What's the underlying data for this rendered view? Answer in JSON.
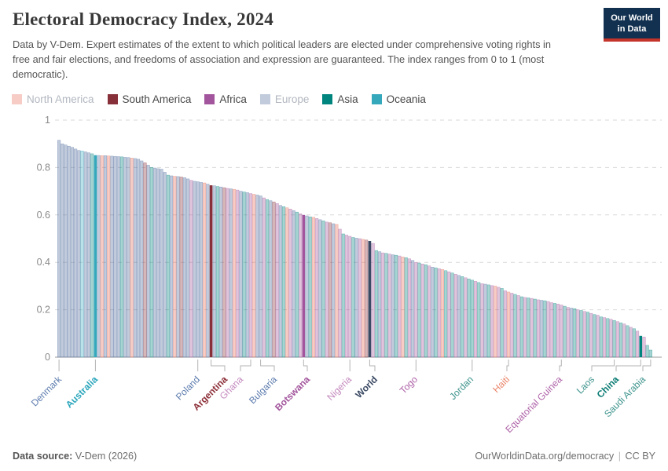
{
  "header": {
    "title": "Electoral Democracy Index, 2024",
    "subtitle": "Data by V-Dem. Expert estimates of the extent to which political leaders are elected under comprehensive voting rights in free and fair elections, and freedoms of association and expression are guaranteed. The index ranges from 0 to 1 (most democratic)."
  },
  "logo": {
    "line1": "Our World",
    "line2": "in Data",
    "bg": "#12304F",
    "accent": "#C3342A"
  },
  "legend": {
    "items": [
      {
        "label": "North America",
        "code": "NA",
        "active": false
      },
      {
        "label": "South America",
        "code": "SA",
        "active": true
      },
      {
        "label": "Africa",
        "code": "AF",
        "active": true
      },
      {
        "label": "Europe",
        "code": "EU",
        "active": false
      },
      {
        "label": "Asia",
        "code": "AS",
        "active": true
      },
      {
        "label": "Oceania",
        "code": "OC",
        "active": true
      }
    ]
  },
  "colors": {
    "NA": "#E56E5A",
    "SA": "#883039",
    "AF": "#A2559C",
    "EU": "#4C6A9C",
    "AS": "#00847E",
    "OC": "#35A8BC",
    "WORLD": "#3B4A64",
    "grid": "#d9d9d9",
    "axis": "#9b9b9b",
    "connector": "#b3b3b3",
    "tick_text": "#8a8a8a",
    "faded_opacity": 0.35
  },
  "footer": {
    "source_label": "Data source:",
    "source_value": " V-Dem (2026)",
    "url": "OurWorldinData.org/democracy",
    "divider": "|",
    "license": "CC BY"
  },
  "chart_data": {
    "type": "bar",
    "title": "Electoral Democracy Index, 2024",
    "ylabel": "",
    "xlabel": "",
    "ylim": [
      0,
      1
    ],
    "yticks": [
      1,
      0.8,
      0.6,
      0.4,
      0.2,
      0
    ],
    "grid": true,
    "sort": "descending by index value",
    "bar_encoding": "[value, continent_code] per country, ranked left to right",
    "bars": [
      [
        0.915,
        "EU"
      ],
      [
        0.9,
        "EU"
      ],
      [
        0.895,
        "EU"
      ],
      [
        0.89,
        "EU"
      ],
      [
        0.885,
        "EU"
      ],
      [
        0.878,
        "EU"
      ],
      [
        0.872,
        "EU"
      ],
      [
        0.87,
        "OC"
      ],
      [
        0.866,
        "EU"
      ],
      [
        0.862,
        "EU"
      ],
      [
        0.858,
        "AS"
      ],
      [
        0.852,
        "OC"
      ],
      [
        0.851,
        "EU"
      ],
      [
        0.85,
        "NA"
      ],
      [
        0.85,
        "EU"
      ],
      [
        0.849,
        "NA"
      ],
      [
        0.848,
        "EU"
      ],
      [
        0.847,
        "EU"
      ],
      [
        0.846,
        "EU"
      ],
      [
        0.845,
        "AS"
      ],
      [
        0.843,
        "EU"
      ],
      [
        0.842,
        "EU"
      ],
      [
        0.84,
        "NA"
      ],
      [
        0.838,
        "EU"
      ],
      [
        0.835,
        "EU"
      ],
      [
        0.828,
        "EU"
      ],
      [
        0.82,
        "SA"
      ],
      [
        0.81,
        "EU"
      ],
      [
        0.8,
        "AS"
      ],
      [
        0.798,
        "EU"
      ],
      [
        0.795,
        "EU"
      ],
      [
        0.793,
        "EU"
      ],
      [
        0.78,
        "EU"
      ],
      [
        0.768,
        "AS"
      ],
      [
        0.765,
        "EU"
      ],
      [
        0.763,
        "NA"
      ],
      [
        0.762,
        "EU"
      ],
      [
        0.76,
        "SA"
      ],
      [
        0.757,
        "EU"
      ],
      [
        0.752,
        "EU"
      ],
      [
        0.746,
        "AF"
      ],
      [
        0.742,
        "EU"
      ],
      [
        0.74,
        "EU"
      ],
      [
        0.737,
        "EU"
      ],
      [
        0.735,
        "NA"
      ],
      [
        0.73,
        "EU"
      ],
      [
        0.725,
        "SA"
      ],
      [
        0.723,
        "EU"
      ],
      [
        0.72,
        "AS"
      ],
      [
        0.718,
        "EU"
      ],
      [
        0.715,
        "SA"
      ],
      [
        0.712,
        "AF"
      ],
      [
        0.71,
        "EU"
      ],
      [
        0.708,
        "NA"
      ],
      [
        0.705,
        "AF"
      ],
      [
        0.7,
        "EU"
      ],
      [
        0.697,
        "AS"
      ],
      [
        0.694,
        "EU"
      ],
      [
        0.69,
        "AF"
      ],
      [
        0.687,
        "NA"
      ],
      [
        0.684,
        "EU"
      ],
      [
        0.68,
        "EU"
      ],
      [
        0.672,
        "AF"
      ],
      [
        0.665,
        "AS"
      ],
      [
        0.66,
        "EU"
      ],
      [
        0.655,
        "SA"
      ],
      [
        0.648,
        "AF"
      ],
      [
        0.64,
        "EU"
      ],
      [
        0.635,
        "AS"
      ],
      [
        0.63,
        "NA"
      ],
      [
        0.625,
        "AF"
      ],
      [
        0.618,
        "EU"
      ],
      [
        0.612,
        "AS"
      ],
      [
        0.605,
        "AF"
      ],
      [
        0.6,
        "AF"
      ],
      [
        0.596,
        "EU"
      ],
      [
        0.592,
        "AS"
      ],
      [
        0.59,
        "NA"
      ],
      [
        0.585,
        "AF"
      ],
      [
        0.58,
        "EU"
      ],
      [
        0.575,
        "AS"
      ],
      [
        0.57,
        "AF"
      ],
      [
        0.567,
        "SA"
      ],
      [
        0.563,
        "EU"
      ],
      [
        0.56,
        "NA"
      ],
      [
        0.54,
        "AF"
      ],
      [
        0.52,
        "AS"
      ],
      [
        0.515,
        "AF"
      ],
      [
        0.51,
        "AF"
      ],
      [
        0.505,
        "AS"
      ],
      [
        0.502,
        "EU"
      ],
      [
        0.5,
        "AF"
      ],
      [
        0.497,
        "NA"
      ],
      [
        0.494,
        "SA"
      ],
      [
        0.49,
        "WORLD"
      ],
      [
        0.48,
        "AF"
      ],
      [
        0.45,
        "AS"
      ],
      [
        0.445,
        "EU"
      ],
      [
        0.44,
        "AF"
      ],
      [
        0.438,
        "AS"
      ],
      [
        0.435,
        "AF"
      ],
      [
        0.432,
        "EU"
      ],
      [
        0.43,
        "AS"
      ],
      [
        0.427,
        "AF"
      ],
      [
        0.423,
        "NA"
      ],
      [
        0.42,
        "AS"
      ],
      [
        0.415,
        "AF"
      ],
      [
        0.408,
        "EU"
      ],
      [
        0.4,
        "AF"
      ],
      [
        0.397,
        "AS"
      ],
      [
        0.393,
        "AF"
      ],
      [
        0.39,
        "AS"
      ],
      [
        0.385,
        "AF"
      ],
      [
        0.38,
        "EU"
      ],
      [
        0.377,
        "AS"
      ],
      [
        0.373,
        "AF"
      ],
      [
        0.37,
        "NA"
      ],
      [
        0.365,
        "AS"
      ],
      [
        0.36,
        "AF"
      ],
      [
        0.355,
        "AS"
      ],
      [
        0.35,
        "AF"
      ],
      [
        0.345,
        "EU"
      ],
      [
        0.34,
        "AS"
      ],
      [
        0.335,
        "AF"
      ],
      [
        0.33,
        "AS"
      ],
      [
        0.325,
        "AS"
      ],
      [
        0.32,
        "AF"
      ],
      [
        0.315,
        "AS"
      ],
      [
        0.31,
        "AF"
      ],
      [
        0.308,
        "EU"
      ],
      [
        0.305,
        "AS"
      ],
      [
        0.302,
        "AF"
      ],
      [
        0.3,
        "NA"
      ],
      [
        0.295,
        "AF"
      ],
      [
        0.29,
        "AS"
      ],
      [
        0.28,
        "AF"
      ],
      [
        0.275,
        "NA"
      ],
      [
        0.27,
        "AF"
      ],
      [
        0.265,
        "AS"
      ],
      [
        0.26,
        "AF"
      ],
      [
        0.255,
        "AS"
      ],
      [
        0.252,
        "AF"
      ],
      [
        0.25,
        "AS"
      ],
      [
        0.248,
        "AF"
      ],
      [
        0.245,
        "AS"
      ],
      [
        0.242,
        "AF"
      ],
      [
        0.24,
        "EU"
      ],
      [
        0.238,
        "AS"
      ],
      [
        0.235,
        "AF"
      ],
      [
        0.23,
        "AF"
      ],
      [
        0.227,
        "AS"
      ],
      [
        0.224,
        "AF"
      ],
      [
        0.22,
        "AF"
      ],
      [
        0.215,
        "AS"
      ],
      [
        0.21,
        "AF"
      ],
      [
        0.207,
        "EU"
      ],
      [
        0.205,
        "AS"
      ],
      [
        0.2,
        "AF"
      ],
      [
        0.197,
        "AS"
      ],
      [
        0.193,
        "AF"
      ],
      [
        0.19,
        "AS"
      ],
      [
        0.185,
        "AF"
      ],
      [
        0.18,
        "AS"
      ],
      [
        0.177,
        "AF"
      ],
      [
        0.17,
        "AS"
      ],
      [
        0.167,
        "AF"
      ],
      [
        0.163,
        "AS"
      ],
      [
        0.16,
        "AF"
      ],
      [
        0.155,
        "AS"
      ],
      [
        0.15,
        "AF"
      ],
      [
        0.145,
        "AS"
      ],
      [
        0.14,
        "AF"
      ],
      [
        0.133,
        "AS"
      ],
      [
        0.126,
        "AF"
      ],
      [
        0.12,
        "AS"
      ],
      [
        0.11,
        "AF"
      ],
      [
        0.09,
        "AS"
      ],
      [
        0.085,
        "AF"
      ],
      [
        0.05,
        "AS"
      ],
      [
        0.03,
        "AS"
      ]
    ],
    "labeled": [
      {
        "name": "Denmark",
        "index": 0,
        "value": 0.915,
        "labelX": 75,
        "color": "#5D7CAE",
        "bold": false
      },
      {
        "name": "Australia",
        "index": 11,
        "value": 0.852,
        "labelX": 121,
        "color": "#2DA7BC",
        "bold": true
      },
      {
        "name": "Poland",
        "index": 42,
        "value": 0.74,
        "labelX": 251,
        "color": "#5D7CAE",
        "bold": false
      },
      {
        "name": "Argentina",
        "index": 46,
        "value": 0.725,
        "labelX": 286,
        "color": "#8C2F38",
        "bold": true
      },
      {
        "name": "Ghana",
        "index": 58,
        "value": 0.69,
        "labelX": 306,
        "color": "#C489BE",
        "bold": false
      },
      {
        "name": "Bulgaria",
        "index": 61,
        "value": 0.68,
        "labelX": 349,
        "color": "#5D7CAE",
        "bold": false
      },
      {
        "name": "Botswana",
        "index": 74,
        "value": 0.6,
        "labelX": 391,
        "color": "#A2559C",
        "bold": true
      },
      {
        "name": "Nigeria",
        "index": 88,
        "value": 0.51,
        "labelX": 444,
        "color": "#C489BE",
        "bold": false
      },
      {
        "name": "World",
        "index": 94,
        "value": 0.49,
        "labelX": 477,
        "color": "#3B4A64",
        "bold": true
      },
      {
        "name": "Togo",
        "index": 108,
        "value": 0.4,
        "labelX": 528,
        "color": "#AE62A8",
        "bold": false
      },
      {
        "name": "Jordan",
        "index": 125,
        "value": 0.325,
        "labelX": 599,
        "color": "#3E948D",
        "bold": false
      },
      {
        "name": "Haiti",
        "index": 136,
        "value": 0.275,
        "labelX": 645,
        "color": "#EA8468",
        "bold": false
      },
      {
        "name": "Equatorial Guinea",
        "index": 152,
        "value": 0.22,
        "labelX": 712,
        "color": "#AE62A8",
        "bold": false
      },
      {
        "name": "Laos",
        "index": 168,
        "value": 0.155,
        "labelX": 753,
        "color": "#3E948D",
        "bold": false
      },
      {
        "name": "China",
        "index": 176,
        "value": 0.09,
        "labelX": 784,
        "color": "#0A7C74",
        "bold": true
      },
      {
        "name": "Saudi Arabia",
        "index": 179,
        "value": 0.03,
        "labelX": 818,
        "color": "#3E948D",
        "bold": false
      }
    ],
    "highlight_indices": [
      11,
      46,
      74,
      94,
      176
    ],
    "legend_position": "top"
  }
}
